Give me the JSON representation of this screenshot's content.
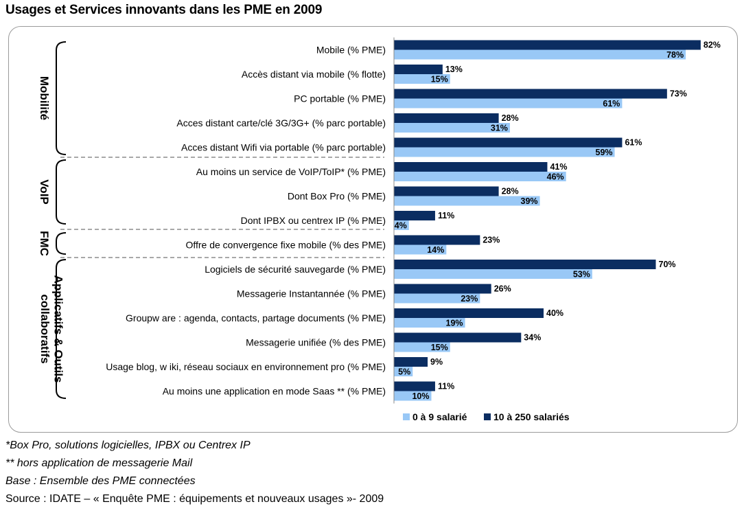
{
  "page": {
    "title": "Usages et Services innovants dans les PME en 2009",
    "footnotes": [
      "*Box Pro, solutions logicielles, IPBX ou Centrex IP",
      "** hors application de messagerie Mail",
      "Base : Ensemble des PME connectées"
    ],
    "source": "Source : IDATE – « Enquête PME : équipements et nouveaux usages »- 2009"
  },
  "chart_data": {
    "type": "bar",
    "orientation": "horizontal",
    "title": "Usages et Services innovants dans les PME en 2009",
    "categories": [
      "Mobile (% PME)",
      "Accès distant via mobile (% flotte)",
      "PC portable (% PME)",
      "Acces distant carte/clé 3G/3G+  (% parc portable)",
      "Acces distant Wifi via portable (% parc portable)",
      "Au moins un service de VoIP/ToIP* (% PME)",
      "Dont Box Pro (% PME)",
      "Dont IPBX ou centrex IP (% PME)",
      "Offre de convergence fixe mobile (% des PME)",
      "Logiciels de sécurité sauvegarde (% PME)",
      "Messagerie Instantannée (% PME)",
      "Groupw are : agenda, contacts, partage documents (% PME)",
      "Messagerie unifiée (% des PME)",
      "Usage blog, w iki, réseau sociaux en environnement pro (% PME)",
      "Au moins une application en mode Saas ** (% PME)"
    ],
    "series": [
      {
        "name": "10 à 250 salariés",
        "color": "#0b2d61",
        "values": [
          82,
          13,
          73,
          28,
          61,
          41,
          28,
          11,
          23,
          70,
          26,
          40,
          34,
          9,
          11
        ],
        "labels": [
          "82%",
          "13%",
          "73%",
          "28%",
          "61%",
          "41%",
          "28%",
          "11%",
          "23%",
          "70%",
          "26%",
          "40%",
          "34%",
          "9%",
          "11%"
        ]
      },
      {
        "name": "0 à 9 salarié",
        "color": "#99c8f6",
        "values": [
          78,
          15,
          61,
          31,
          59,
          46,
          39,
          4,
          14,
          53,
          23,
          19,
          15,
          5,
          10
        ],
        "labels": [
          "78%",
          "15%",
          "61%",
          "31%",
          "59%",
          "46%",
          "39%",
          "4%",
          "14%",
          "53%",
          "23%",
          "19%",
          "15%",
          "5%",
          "10%"
        ]
      }
    ],
    "groups": [
      {
        "label": "Mobilité",
        "first": 0,
        "last": 4
      },
      {
        "label": "VoIP",
        "first": 5,
        "last": 7
      },
      {
        "label": "FMC",
        "first": 8,
        "last": 8
      },
      {
        "label": "Applicatifs & Outils collaboratifs",
        "first": 9,
        "last": 14
      }
    ],
    "legend": {
      "position": "bottom-right",
      "entries": [
        {
          "label": "0 à 9 salarié",
          "color": "#99c8f6"
        },
        {
          "label": "10 à 250 salariés",
          "color": "#0b2d61"
        }
      ]
    },
    "xlim": [
      0,
      100
    ],
    "grid": false
  }
}
